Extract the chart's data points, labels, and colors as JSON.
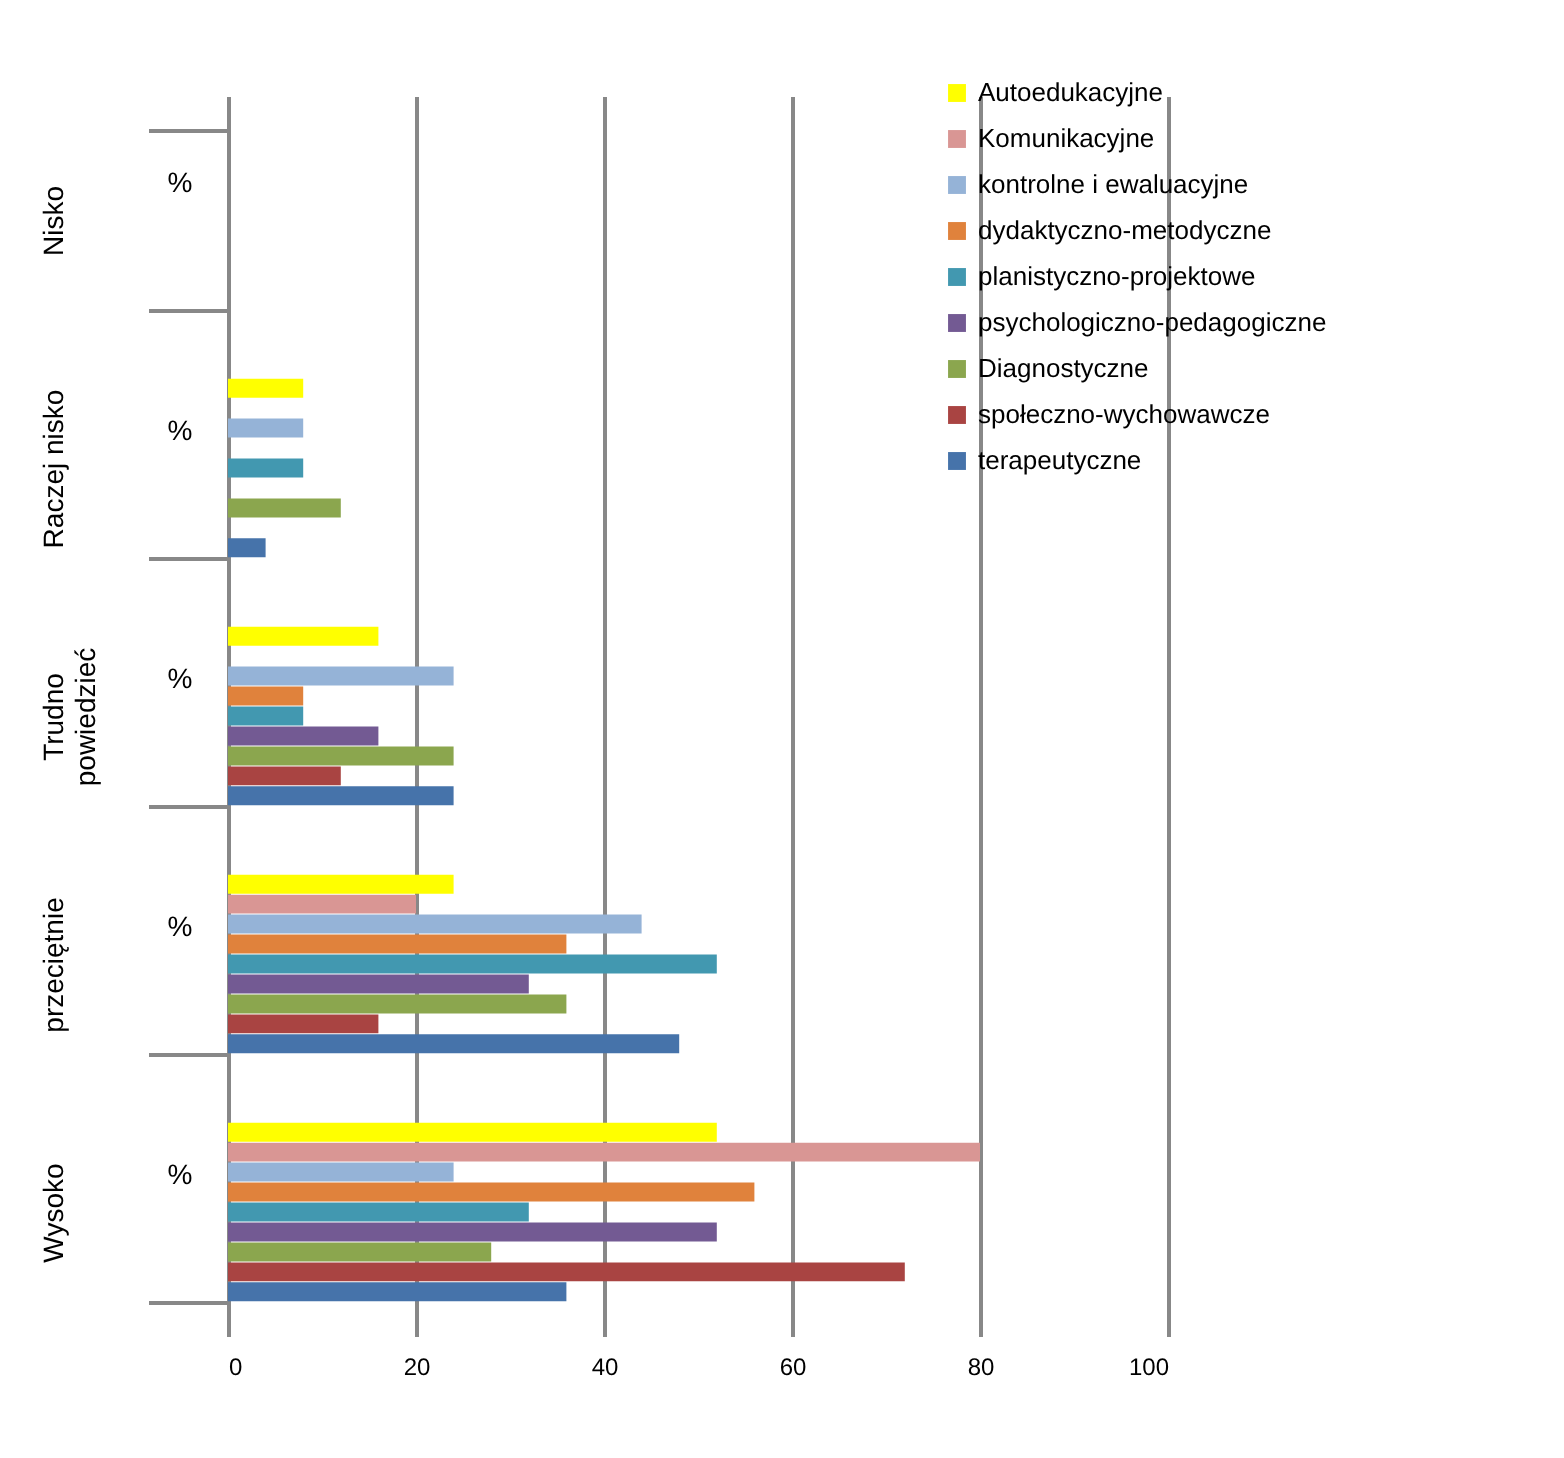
{
  "chart_data": {
    "type": "bar",
    "orientation": "horizontal",
    "categories": [
      "Nisko",
      "Raczej nisko",
      "Trudno powiedzieć",
      "przeciętnie",
      "Wysoko"
    ],
    "series": [
      {
        "name": "Autoedukacyjne",
        "color": "#ffff00",
        "values": [
          0,
          8,
          16,
          24,
          52
        ]
      },
      {
        "name": "Komunikacyjne",
        "color": "#d99694",
        "values": [
          0,
          0,
          0,
          20,
          80
        ]
      },
      {
        "name": "kontrolne i ewaluacyjne",
        "color": "#95b3d7",
        "values": [
          0,
          8,
          24,
          44,
          24
        ]
      },
      {
        "name": "dydaktyczno-metodyczne",
        "color": "#e0823c",
        "values": [
          0,
          0,
          8,
          36,
          56
        ]
      },
      {
        "name": "planistyczno-projektowe",
        "color": "#4298b0",
        "values": [
          0,
          8,
          8,
          52,
          32
        ]
      },
      {
        "name": "psychologiczno-pedagogiczne",
        "color": "#735a93",
        "values": [
          0,
          0,
          16,
          32,
          52
        ]
      },
      {
        "name": "Diagnostyczne",
        "color": "#8ba64e",
        "values": [
          0,
          12,
          24,
          36,
          28
        ]
      },
      {
        "name": "społeczno-wychowawcze",
        "color": "#a94442",
        "values": [
          0,
          0,
          12,
          16,
          72
        ]
      },
      {
        "name": "terapeutyczne",
        "color": "#4673aa",
        "values": [
          0,
          4,
          24,
          48,
          36
        ]
      }
    ],
    "xlim": [
      0,
      100
    ],
    "xticks": [
      0,
      20,
      40,
      60,
      80,
      100
    ],
    "grid": "x",
    "legend": "top right",
    "annotations": [
      "%",
      "%",
      "%",
      "%",
      "%"
    ]
  }
}
